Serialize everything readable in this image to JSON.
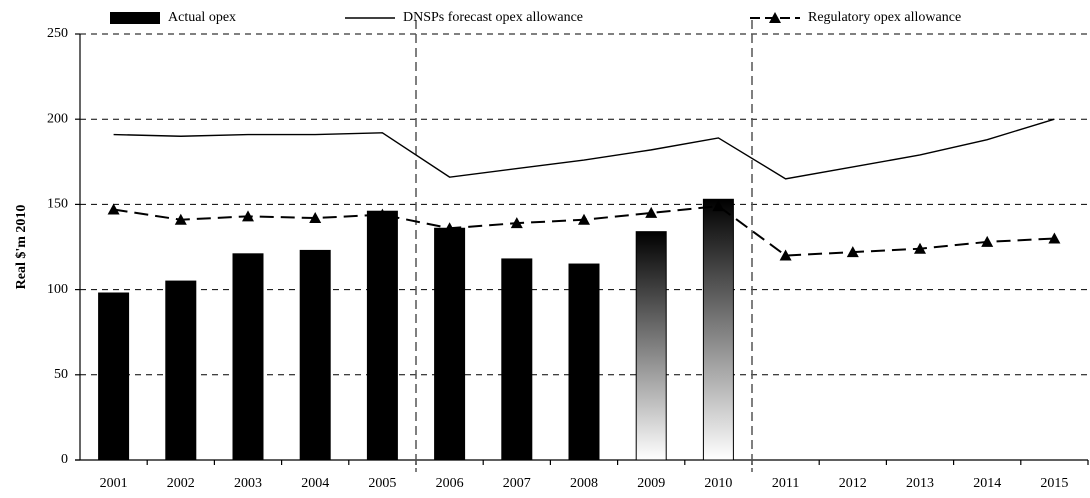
{
  "chart_data": {
    "type": "bar_line",
    "y_label": "Real $'m 2010",
    "categories": [
      "2001",
      "2002",
      "2003",
      "2004",
      "2005",
      "2006",
      "2007",
      "2008",
      "2009",
      "2010",
      "2011",
      "2012",
      "2013",
      "2014",
      "2015"
    ],
    "series": [
      {
        "name": "Actual opex",
        "type": "bar",
        "color": "#000000",
        "values": [
          98,
          105,
          121,
          123,
          146,
          136,
          118,
          115,
          134,
          153,
          null,
          null,
          null,
          null,
          null
        ],
        "bar_fills": [
          "solid",
          "solid",
          "solid",
          "solid",
          "solid",
          "solid",
          "solid",
          "solid",
          "gradient",
          "gradient",
          null,
          null,
          null,
          null,
          null
        ]
      },
      {
        "name": "DNSPs forecast opex allowance",
        "type": "line",
        "color": "#000000",
        "dashed": false,
        "marker": "none",
        "values": [
          191,
          190,
          191,
          191,
          192,
          166,
          171,
          176,
          182,
          189,
          165,
          172,
          179,
          188,
          200
        ]
      },
      {
        "name": "Regulatory opex allowance",
        "type": "line",
        "color": "#000000",
        "dashed": true,
        "marker": "triangle",
        "values": [
          147,
          141,
          143,
          142,
          144,
          136,
          139,
          141,
          145,
          149,
          120,
          122,
          124,
          128,
          130
        ]
      }
    ],
    "dividers_after": [
      "2005",
      "2010"
    ],
    "ylim": [
      0,
      250
    ],
    "yticks": [
      0,
      50,
      100,
      150,
      200,
      250
    ],
    "grid": true
  }
}
